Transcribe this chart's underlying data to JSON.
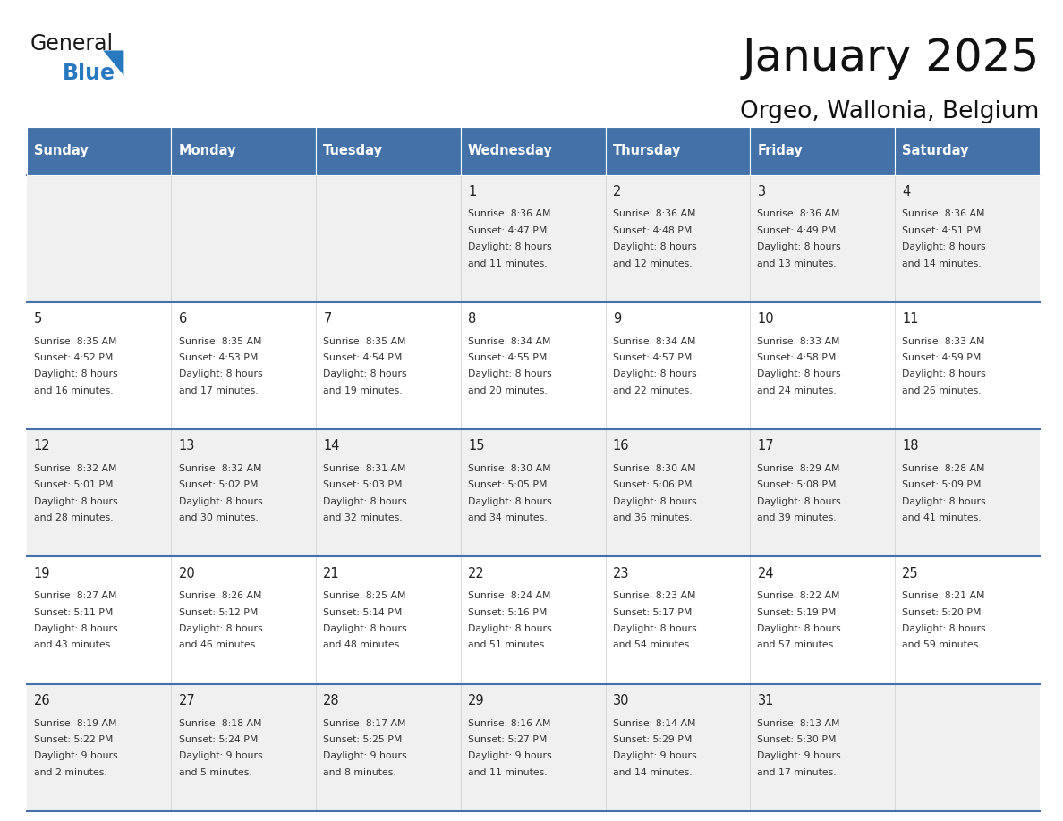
{
  "title": "January 2025",
  "subtitle": "Orgeo, Wallonia, Belgium",
  "days_of_week": [
    "Sunday",
    "Monday",
    "Tuesday",
    "Wednesday",
    "Thursday",
    "Friday",
    "Saturday"
  ],
  "header_bg": "#4472a8",
  "header_text": "#ffffff",
  "row_bg_light": "#f0f0f0",
  "row_bg_white": "#ffffff",
  "border_color": "#4472a8",
  "day_num_color": "#222222",
  "cell_text_color": "#333333",
  "logo_general_color": "#1a1a1a",
  "logo_blue_color": "#2878c0",
  "logo_triangle_color": "#2878c0",
  "calendar_data": [
    {
      "day": 1,
      "col": 3,
      "row": 0,
      "sunrise": "8:36 AM",
      "sunset": "4:47 PM",
      "daylight": "8 hours",
      "daylight2": "and 11 minutes."
    },
    {
      "day": 2,
      "col": 4,
      "row": 0,
      "sunrise": "8:36 AM",
      "sunset": "4:48 PM",
      "daylight": "8 hours",
      "daylight2": "and 12 minutes."
    },
    {
      "day": 3,
      "col": 5,
      "row": 0,
      "sunrise": "8:36 AM",
      "sunset": "4:49 PM",
      "daylight": "8 hours",
      "daylight2": "and 13 minutes."
    },
    {
      "day": 4,
      "col": 6,
      "row": 0,
      "sunrise": "8:36 AM",
      "sunset": "4:51 PM",
      "daylight": "8 hours",
      "daylight2": "and 14 minutes."
    },
    {
      "day": 5,
      "col": 0,
      "row": 1,
      "sunrise": "8:35 AM",
      "sunset": "4:52 PM",
      "daylight": "8 hours",
      "daylight2": "and 16 minutes."
    },
    {
      "day": 6,
      "col": 1,
      "row": 1,
      "sunrise": "8:35 AM",
      "sunset": "4:53 PM",
      "daylight": "8 hours",
      "daylight2": "and 17 minutes."
    },
    {
      "day": 7,
      "col": 2,
      "row": 1,
      "sunrise": "8:35 AM",
      "sunset": "4:54 PM",
      "daylight": "8 hours",
      "daylight2": "and 19 minutes."
    },
    {
      "day": 8,
      "col": 3,
      "row": 1,
      "sunrise": "8:34 AM",
      "sunset": "4:55 PM",
      "daylight": "8 hours",
      "daylight2": "and 20 minutes."
    },
    {
      "day": 9,
      "col": 4,
      "row": 1,
      "sunrise": "8:34 AM",
      "sunset": "4:57 PM",
      "daylight": "8 hours",
      "daylight2": "and 22 minutes."
    },
    {
      "day": 10,
      "col": 5,
      "row": 1,
      "sunrise": "8:33 AM",
      "sunset": "4:58 PM",
      "daylight": "8 hours",
      "daylight2": "and 24 minutes."
    },
    {
      "day": 11,
      "col": 6,
      "row": 1,
      "sunrise": "8:33 AM",
      "sunset": "4:59 PM",
      "daylight": "8 hours",
      "daylight2": "and 26 minutes."
    },
    {
      "day": 12,
      "col": 0,
      "row": 2,
      "sunrise": "8:32 AM",
      "sunset": "5:01 PM",
      "daylight": "8 hours",
      "daylight2": "and 28 minutes."
    },
    {
      "day": 13,
      "col": 1,
      "row": 2,
      "sunrise": "8:32 AM",
      "sunset": "5:02 PM",
      "daylight": "8 hours",
      "daylight2": "and 30 minutes."
    },
    {
      "day": 14,
      "col": 2,
      "row": 2,
      "sunrise": "8:31 AM",
      "sunset": "5:03 PM",
      "daylight": "8 hours",
      "daylight2": "and 32 minutes."
    },
    {
      "day": 15,
      "col": 3,
      "row": 2,
      "sunrise": "8:30 AM",
      "sunset": "5:05 PM",
      "daylight": "8 hours",
      "daylight2": "and 34 minutes."
    },
    {
      "day": 16,
      "col": 4,
      "row": 2,
      "sunrise": "8:30 AM",
      "sunset": "5:06 PM",
      "daylight": "8 hours",
      "daylight2": "and 36 minutes."
    },
    {
      "day": 17,
      "col": 5,
      "row": 2,
      "sunrise": "8:29 AM",
      "sunset": "5:08 PM",
      "daylight": "8 hours",
      "daylight2": "and 39 minutes."
    },
    {
      "day": 18,
      "col": 6,
      "row": 2,
      "sunrise": "8:28 AM",
      "sunset": "5:09 PM",
      "daylight": "8 hours",
      "daylight2": "and 41 minutes."
    },
    {
      "day": 19,
      "col": 0,
      "row": 3,
      "sunrise": "8:27 AM",
      "sunset": "5:11 PM",
      "daylight": "8 hours",
      "daylight2": "and 43 minutes."
    },
    {
      "day": 20,
      "col": 1,
      "row": 3,
      "sunrise": "8:26 AM",
      "sunset": "5:12 PM",
      "daylight": "8 hours",
      "daylight2": "and 46 minutes."
    },
    {
      "day": 21,
      "col": 2,
      "row": 3,
      "sunrise": "8:25 AM",
      "sunset": "5:14 PM",
      "daylight": "8 hours",
      "daylight2": "and 48 minutes."
    },
    {
      "day": 22,
      "col": 3,
      "row": 3,
      "sunrise": "8:24 AM",
      "sunset": "5:16 PM",
      "daylight": "8 hours",
      "daylight2": "and 51 minutes."
    },
    {
      "day": 23,
      "col": 4,
      "row": 3,
      "sunrise": "8:23 AM",
      "sunset": "5:17 PM",
      "daylight": "8 hours",
      "daylight2": "and 54 minutes."
    },
    {
      "day": 24,
      "col": 5,
      "row": 3,
      "sunrise": "8:22 AM",
      "sunset": "5:19 PM",
      "daylight": "8 hours",
      "daylight2": "and 57 minutes."
    },
    {
      "day": 25,
      "col": 6,
      "row": 3,
      "sunrise": "8:21 AM",
      "sunset": "5:20 PM",
      "daylight": "8 hours",
      "daylight2": "and 59 minutes."
    },
    {
      "day": 26,
      "col": 0,
      "row": 4,
      "sunrise": "8:19 AM",
      "sunset": "5:22 PM",
      "daylight": "9 hours",
      "daylight2": "and 2 minutes."
    },
    {
      "day": 27,
      "col": 1,
      "row": 4,
      "sunrise": "8:18 AM",
      "sunset": "5:24 PM",
      "daylight": "9 hours",
      "daylight2": "and 5 minutes."
    },
    {
      "day": 28,
      "col": 2,
      "row": 4,
      "sunrise": "8:17 AM",
      "sunset": "5:25 PM",
      "daylight": "9 hours",
      "daylight2": "and 8 minutes."
    },
    {
      "day": 29,
      "col": 3,
      "row": 4,
      "sunrise": "8:16 AM",
      "sunset": "5:27 PM",
      "daylight": "9 hours",
      "daylight2": "and 11 minutes."
    },
    {
      "day": 30,
      "col": 4,
      "row": 4,
      "sunrise": "8:14 AM",
      "sunset": "5:29 PM",
      "daylight": "9 hours",
      "daylight2": "and 14 minutes."
    },
    {
      "day": 31,
      "col": 5,
      "row": 4,
      "sunrise": "8:13 AM",
      "sunset": "5:30 PM",
      "daylight": "9 hours",
      "daylight2": "and 17 minutes."
    }
  ]
}
